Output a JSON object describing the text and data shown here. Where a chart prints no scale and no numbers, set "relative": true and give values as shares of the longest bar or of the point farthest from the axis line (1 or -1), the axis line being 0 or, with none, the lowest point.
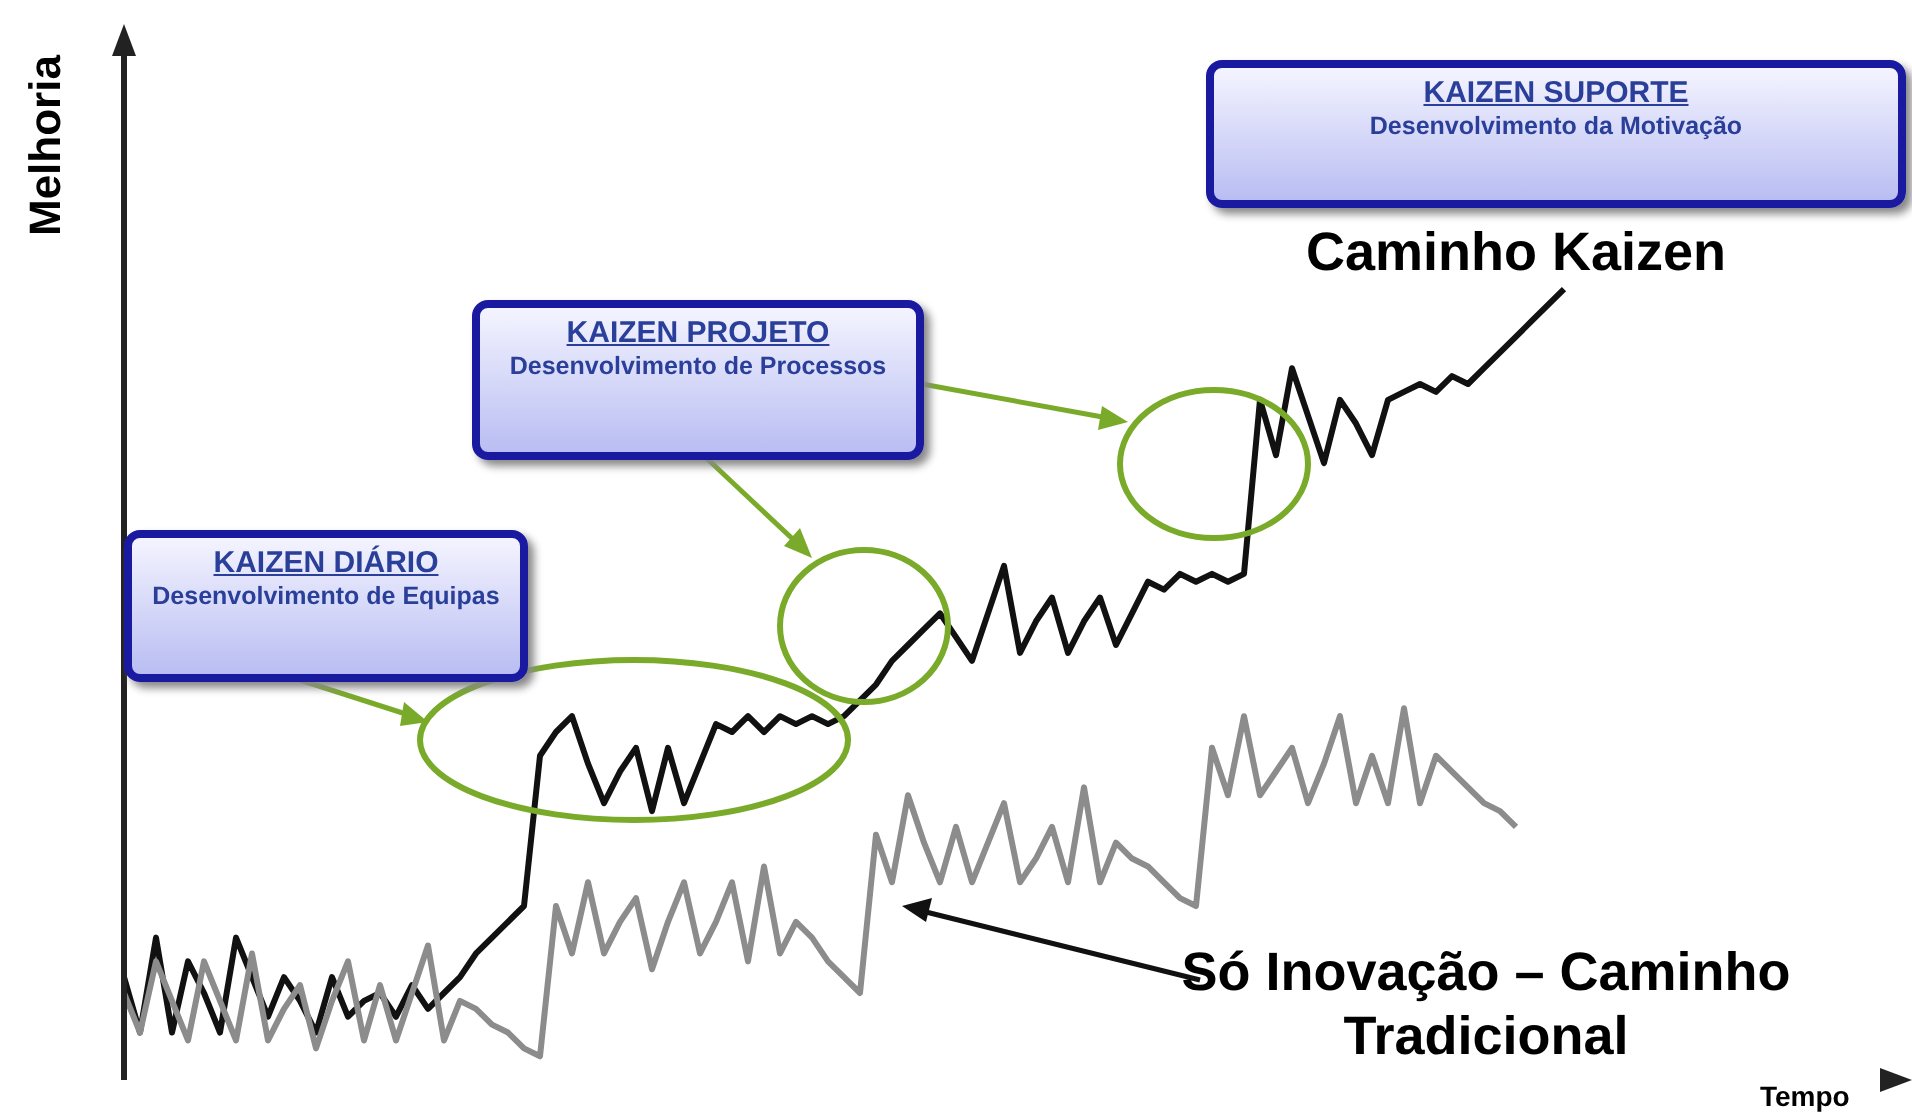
{
  "chart_data": {
    "type": "line",
    "relative": true,
    "ylabel": "Melhoria",
    "marker": "none",
    "line_style": "solid",
    "annotations": [
      "KAIZEN DIÁRIO",
      "Desenvolvimento de Equipas",
      "KAIZEN PROJETO",
      "Desenvolvimento de Processos",
      "KAIZEN SUPORTE",
      "Desenvolvimento da Motivação",
      "Tempo"
    ],
    "categories": [
      null,
      null,
      null,
      null,
      null,
      null,
      null,
      null,
      null,
      null,
      null,
      null,
      null,
      null,
      null,
      null,
      null,
      null,
      null,
      null,
      null,
      null,
      null,
      null,
      null,
      null,
      null,
      null,
      null,
      null,
      null,
      null,
      null,
      null,
      null,
      null,
      null,
      null,
      null,
      null,
      null,
      null,
      null,
      null,
      null,
      null,
      null,
      null,
      null,
      null,
      null,
      null,
      null,
      null,
      null,
      null,
      null,
      null,
      null,
      null,
      null,
      null,
      null,
      null,
      null,
      null,
      null,
      null,
      null,
      null,
      null,
      null,
      null,
      null,
      null,
      null,
      null,
      null,
      null,
      null,
      null,
      null,
      null,
      null,
      null,
      null,
      null,
      null,
      null,
      null,
      null
    ],
    "series": [
      {
        "name": "Caminho Kaizen",
        "color": "#111111",
        "values": [
          0.13,
          0.06,
          0.18,
          0.06,
          0.15,
          0.11,
          0.06,
          0.18,
          0.13,
          0.08,
          0.13,
          0.1,
          0.06,
          0.13,
          0.08,
          0.1,
          0.11,
          0.08,
          0.12,
          0.09,
          0.11,
          0.13,
          0.16,
          0.18,
          0.2,
          0.22,
          0.41,
          0.44,
          0.46,
          0.4,
          0.35,
          0.39,
          0.42,
          0.34,
          0.42,
          0.35,
          0.4,
          0.45,
          0.44,
          0.46,
          0.44,
          0.46,
          0.45,
          0.46,
          0.45,
          0.46,
          0.48,
          0.5,
          0.53,
          0.55,
          0.57,
          0.59,
          0.56,
          0.53,
          0.59,
          0.65,
          0.54,
          0.58,
          0.61,
          0.54,
          0.58,
          0.61,
          0.55,
          0.59,
          0.63,
          0.62,
          0.64,
          0.63,
          0.64,
          0.63,
          0.64,
          0.86,
          0.79,
          0.9,
          0.84,
          0.78,
          0.86,
          0.83,
          0.79,
          0.86,
          0.87,
          0.88,
          0.87,
          0.89,
          0.88,
          0.9,
          0.92,
          0.94,
          0.96,
          0.98,
          1.0
        ]
      },
      {
        "name": "Só Inovação – Caminho Tradicional",
        "color": "#8c8c8c",
        "values": [
          0.11,
          0.06,
          0.15,
          0.1,
          0.05,
          0.15,
          0.1,
          0.05,
          0.16,
          0.05,
          0.09,
          0.12,
          0.04,
          0.1,
          0.15,
          0.05,
          0.12,
          0.05,
          0.11,
          0.17,
          0.05,
          0.1,
          0.09,
          0.07,
          0.06,
          0.04,
          0.03,
          0.22,
          0.16,
          0.25,
          0.16,
          0.2,
          0.23,
          0.14,
          0.2,
          0.25,
          0.16,
          0.2,
          0.25,
          0.15,
          0.27,
          0.16,
          0.2,
          0.18,
          0.15,
          0.13,
          0.11,
          0.31,
          0.25,
          0.36,
          0.3,
          0.25,
          0.32,
          0.25,
          0.3,
          0.35,
          0.25,
          0.28,
          0.32,
          0.25,
          0.37,
          0.25,
          0.3,
          0.28,
          0.27,
          0.25,
          0.23,
          0.22,
          0.42,
          0.36,
          0.46,
          0.36,
          0.39,
          0.42,
          0.35,
          0.4,
          0.46,
          0.35,
          0.41,
          0.35,
          0.47,
          0.35,
          0.41,
          0.39,
          0.37,
          0.35,
          0.34,
          0.32,
          null,
          null,
          null
        ]
      }
    ]
  }
}
